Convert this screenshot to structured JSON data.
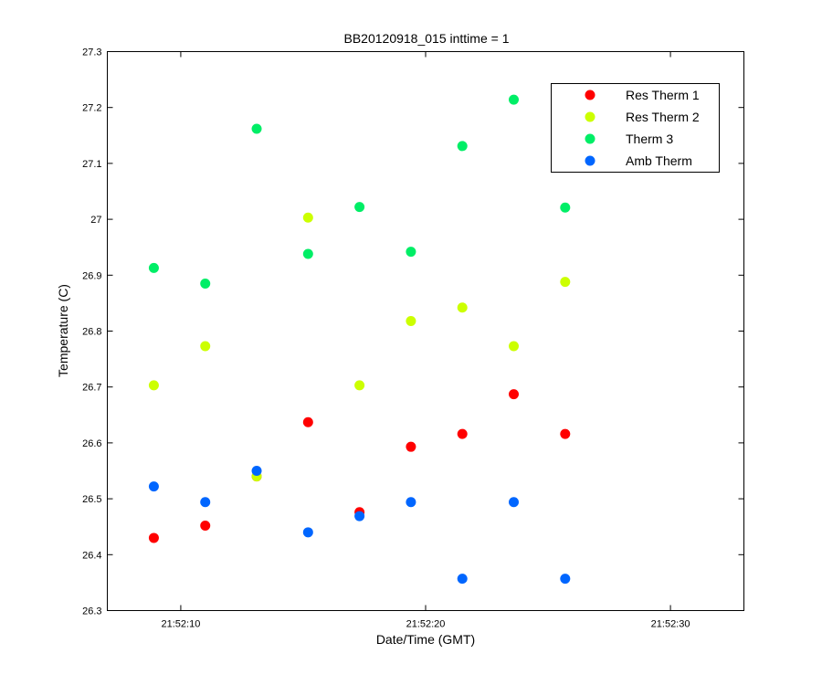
{
  "chart_data": {
    "type": "scatter",
    "title": "BB20120918_015 inttime = 1",
    "xlabel": "Date/Time (GMT)",
    "ylabel": "Temperature (C)",
    "x_unit": "seconds after 21:52:00",
    "xlim": [
      7,
      33
    ],
    "ylim": [
      26.3,
      27.3
    ],
    "x_ticks": [
      {
        "value": 10,
        "label": "21:52:10"
      },
      {
        "value": 20,
        "label": "21:52:20"
      },
      {
        "value": 30,
        "label": "21:52:30"
      }
    ],
    "y_ticks": [
      {
        "value": 26.3,
        "label": "26.3"
      },
      {
        "value": 26.4,
        "label": "26.4"
      },
      {
        "value": 26.5,
        "label": "26.5"
      },
      {
        "value": 26.6,
        "label": "26.6"
      },
      {
        "value": 26.7,
        "label": "26.7"
      },
      {
        "value": 26.8,
        "label": "26.8"
      },
      {
        "value": 26.9,
        "label": "26.9"
      },
      {
        "value": 27.0,
        "label": "27"
      },
      {
        "value": 27.1,
        "label": "27.1"
      },
      {
        "value": 27.2,
        "label": "27.2"
      },
      {
        "value": 27.3,
        "label": "27.3"
      }
    ],
    "grid": false,
    "legend_position": "top-right",
    "series": [
      {
        "name": "Res Therm 1",
        "color": "#ff0000",
        "points": [
          {
            "x": 8.9,
            "y": 26.43
          },
          {
            "x": 11.0,
            "y": 26.452
          },
          {
            "x": 13.1,
            "y": 26.54
          },
          {
            "x": 15.2,
            "y": 26.637
          },
          {
            "x": 17.3,
            "y": 26.476
          },
          {
            "x": 19.4,
            "y": 26.593
          },
          {
            "x": 21.5,
            "y": 26.616
          },
          {
            "x": 23.6,
            "y": 26.687
          },
          {
            "x": 25.7,
            "y": 26.616
          }
        ]
      },
      {
        "name": "Res Therm 2",
        "color": "#ccff00",
        "points": [
          {
            "x": 8.9,
            "y": 26.703
          },
          {
            "x": 11.0,
            "y": 26.773
          },
          {
            "x": 13.1,
            "y": 26.54
          },
          {
            "x": 15.2,
            "y": 27.003
          },
          {
            "x": 17.3,
            "y": 26.703
          },
          {
            "x": 19.4,
            "y": 26.818
          },
          {
            "x": 21.5,
            "y": 26.842
          },
          {
            "x": 23.6,
            "y": 26.773
          },
          {
            "x": 25.7,
            "y": 26.888
          }
        ]
      },
      {
        "name": "Therm 3",
        "color": "#00ee66",
        "points": [
          {
            "x": 8.9,
            "y": 26.913
          },
          {
            "x": 11.0,
            "y": 26.885
          },
          {
            "x": 13.1,
            "y": 27.162
          },
          {
            "x": 15.2,
            "y": 26.938
          },
          {
            "x": 17.3,
            "y": 27.022
          },
          {
            "x": 19.4,
            "y": 26.942
          },
          {
            "x": 21.5,
            "y": 27.131
          },
          {
            "x": 23.6,
            "y": 27.214
          },
          {
            "x": 25.7,
            "y": 27.021
          }
        ]
      },
      {
        "name": "Amb Therm",
        "color": "#0066ff",
        "points": [
          {
            "x": 8.9,
            "y": 26.522
          },
          {
            "x": 11.0,
            "y": 26.494
          },
          {
            "x": 13.1,
            "y": 26.55
          },
          {
            "x": 15.2,
            "y": 26.44
          },
          {
            "x": 17.3,
            "y": 26.469
          },
          {
            "x": 19.4,
            "y": 26.494
          },
          {
            "x": 21.5,
            "y": 26.357
          },
          {
            "x": 23.6,
            "y": 26.494
          },
          {
            "x": 25.7,
            "y": 26.357
          }
        ]
      }
    ]
  }
}
